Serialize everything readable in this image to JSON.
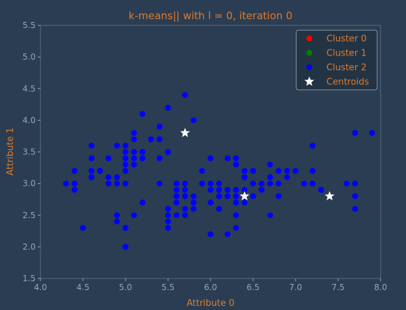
{
  "chart_data": {
    "type": "scatter",
    "title": "k-means|| with l = 0, iteration 0",
    "xlabel": "Attribute 0",
    "ylabel": "Attribute 1",
    "xlim": [
      4.0,
      8.0
    ],
    "ylim": [
      1.5,
      5.5
    ],
    "xticks": [
      "4.0",
      "4.5",
      "5.0",
      "5.5",
      "6.0",
      "6.5",
      "7.0",
      "7.5",
      "8.0"
    ],
    "yticks": [
      "1.5",
      "2.0",
      "2.5",
      "3.0",
      "3.5",
      "4.0",
      "4.5",
      "5.0",
      "5.5"
    ],
    "grid": false,
    "legend_position": "top-right",
    "colors": {
      "background": "#2a3d52",
      "plot_background": "#2a3d52",
      "axis_text": "#e07a2c",
      "tick_text": "#9aa6b2",
      "cluster0": "#ff0000",
      "cluster1": "#008000",
      "cluster2": "#0000ff",
      "centroid": "#ffffff"
    },
    "series": [
      {
        "name": "Cluster 0",
        "marker": "circle",
        "color": "#ff0000",
        "points": []
      },
      {
        "name": "Cluster 1",
        "marker": "circle",
        "color": "#008000",
        "points": []
      },
      {
        "name": "Cluster 2",
        "marker": "circle",
        "color": "#0000ff",
        "points": [
          [
            4.3,
            3.0
          ],
          [
            4.4,
            2.9
          ],
          [
            4.4,
            3.0
          ],
          [
            4.4,
            3.2
          ],
          [
            4.5,
            2.3
          ],
          [
            4.6,
            3.1
          ],
          [
            4.6,
            3.2
          ],
          [
            4.6,
            3.4
          ],
          [
            4.6,
            3.6
          ],
          [
            4.7,
            3.2
          ],
          [
            4.8,
            3.0
          ],
          [
            4.8,
            3.1
          ],
          [
            4.8,
            3.4
          ],
          [
            4.9,
            2.4
          ],
          [
            4.9,
            2.5
          ],
          [
            4.9,
            3.0
          ],
          [
            4.9,
            3.1
          ],
          [
            4.9,
            3.6
          ],
          [
            5.0,
            2.0
          ],
          [
            5.0,
            2.3
          ],
          [
            5.0,
            3.0
          ],
          [
            5.0,
            3.2
          ],
          [
            5.0,
            3.3
          ],
          [
            5.0,
            3.4
          ],
          [
            5.0,
            3.5
          ],
          [
            5.0,
            3.6
          ],
          [
            5.1,
            2.5
          ],
          [
            5.1,
            3.3
          ],
          [
            5.1,
            3.4
          ],
          [
            5.1,
            3.5
          ],
          [
            5.1,
            3.7
          ],
          [
            5.1,
            3.8
          ],
          [
            5.2,
            2.7
          ],
          [
            5.2,
            3.4
          ],
          [
            5.2,
            3.5
          ],
          [
            5.2,
            4.1
          ],
          [
            5.3,
            3.7
          ],
          [
            5.4,
            3.0
          ],
          [
            5.4,
            3.4
          ],
          [
            5.4,
            3.7
          ],
          [
            5.4,
            3.9
          ],
          [
            5.5,
            2.3
          ],
          [
            5.5,
            2.4
          ],
          [
            5.5,
            2.5
          ],
          [
            5.5,
            2.6
          ],
          [
            5.5,
            3.5
          ],
          [
            5.5,
            4.2
          ],
          [
            5.6,
            2.5
          ],
          [
            5.6,
            2.7
          ],
          [
            5.6,
            2.8
          ],
          [
            5.6,
            2.9
          ],
          [
            5.6,
            3.0
          ],
          [
            5.7,
            2.5
          ],
          [
            5.7,
            2.6
          ],
          [
            5.7,
            2.8
          ],
          [
            5.7,
            2.9
          ],
          [
            5.7,
            3.0
          ],
          [
            5.7,
            4.4
          ],
          [
            5.8,
            2.6
          ],
          [
            5.8,
            2.7
          ],
          [
            5.8,
            2.8
          ],
          [
            5.8,
            4.0
          ],
          [
            5.9,
            3.0
          ],
          [
            5.9,
            3.2
          ],
          [
            6.0,
            2.2
          ],
          [
            6.0,
            2.7
          ],
          [
            6.0,
            2.9
          ],
          [
            6.0,
            3.0
          ],
          [
            6.0,
            3.4
          ],
          [
            6.1,
            2.6
          ],
          [
            6.1,
            2.8
          ],
          [
            6.1,
            2.9
          ],
          [
            6.1,
            3.0
          ],
          [
            6.2,
            2.2
          ],
          [
            6.2,
            2.8
          ],
          [
            6.2,
            2.9
          ],
          [
            6.2,
            3.4
          ],
          [
            6.3,
            2.3
          ],
          [
            6.3,
            2.5
          ],
          [
            6.3,
            2.7
          ],
          [
            6.3,
            2.8
          ],
          [
            6.3,
            2.9
          ],
          [
            6.3,
            3.3
          ],
          [
            6.3,
            3.4
          ],
          [
            6.4,
            2.7
          ],
          [
            6.4,
            2.8
          ],
          [
            6.4,
            2.9
          ],
          [
            6.4,
            3.1
          ],
          [
            6.4,
            3.2
          ],
          [
            6.5,
            2.8
          ],
          [
            6.5,
            3.0
          ],
          [
            6.5,
            3.2
          ],
          [
            6.6,
            2.9
          ],
          [
            6.6,
            3.0
          ],
          [
            6.7,
            2.5
          ],
          [
            6.7,
            3.0
          ],
          [
            6.7,
            3.1
          ],
          [
            6.7,
            3.3
          ],
          [
            6.8,
            2.8
          ],
          [
            6.8,
            3.0
          ],
          [
            6.8,
            3.2
          ],
          [
            6.9,
            3.1
          ],
          [
            6.9,
            3.2
          ],
          [
            7.0,
            3.2
          ],
          [
            7.1,
            3.0
          ],
          [
            7.2,
            3.0
          ],
          [
            7.2,
            3.2
          ],
          [
            7.2,
            3.6
          ],
          [
            7.3,
            2.9
          ],
          [
            7.6,
            3.0
          ],
          [
            7.7,
            2.6
          ],
          [
            7.7,
            2.8
          ],
          [
            7.7,
            3.0
          ],
          [
            7.7,
            3.8
          ],
          [
            7.9,
            3.8
          ]
        ]
      },
      {
        "name": "Centroids",
        "marker": "star",
        "color": "#ffffff",
        "points": [
          [
            5.7,
            3.8
          ],
          [
            6.4,
            2.8
          ],
          [
            7.4,
            2.8
          ]
        ]
      }
    ]
  }
}
